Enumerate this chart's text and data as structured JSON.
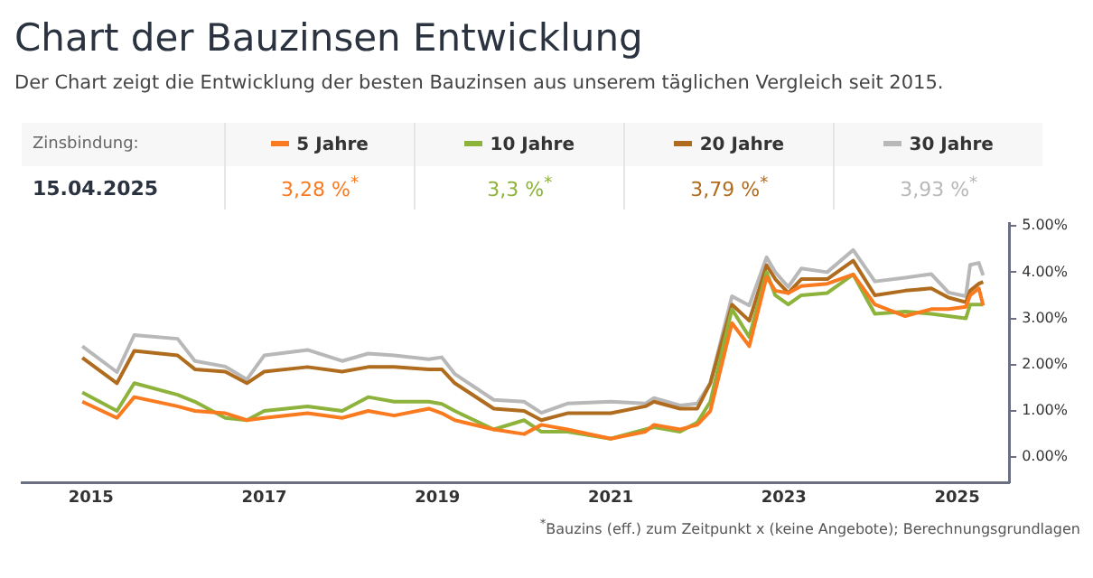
{
  "chart_data": {
    "type": "line",
    "title": "Chart der Bauzinsen Entwicklung",
    "subtitle": "Der Chart zeigt die Entwicklung der besten Bauzinsen aus unserem täglichen Vergleich seit 2015.",
    "legend_title": "Zinsbindung:",
    "legend": "top",
    "grid": false,
    "x": [
      2014.9,
      2015.3,
      2015.5,
      2016.0,
      2016.2,
      2016.55,
      2016.8,
      2017.0,
      2017.5,
      2017.9,
      2018.2,
      2018.5,
      2018.9,
      2019.05,
      2019.2,
      2019.65,
      2020.0,
      2020.2,
      2020.5,
      2021.0,
      2021.4,
      2021.5,
      2021.8,
      2022.0,
      2022.15,
      2022.4,
      2022.6,
      2022.8,
      2022.9,
      2023.05,
      2023.2,
      2023.5,
      2023.8,
      2024.05,
      2024.4,
      2024.7,
      2024.9,
      2025.1,
      2025.15,
      2025.25,
      2025.3
    ],
    "xlim": [
      2014.2,
      2025.6
    ],
    "xticks": [
      2015,
      2017,
      2019,
      2021,
      2023,
      2025
    ],
    "ylim": [
      -0.55,
      5.05
    ],
    "yticks": [
      {
        "value": 0,
        "label": "0.00%"
      },
      {
        "value": 1,
        "label": "1.00%"
      },
      {
        "value": 2,
        "label": "2.00%"
      },
      {
        "value": 3,
        "label": "3.00%"
      },
      {
        "value": 4,
        "label": "4.00%"
      },
      {
        "value": 5,
        "label": "5.00%"
      }
    ],
    "series": [
      {
        "name": "5 Jahre",
        "color": "#f97a1f",
        "values": [
          1.2,
          0.85,
          1.3,
          1.1,
          1.0,
          0.95,
          0.8,
          0.85,
          0.95,
          0.85,
          1.0,
          0.9,
          1.05,
          0.95,
          0.8,
          0.6,
          0.5,
          0.7,
          0.6,
          0.4,
          0.55,
          0.7,
          0.6,
          0.7,
          1.0,
          2.9,
          2.4,
          3.9,
          3.6,
          3.55,
          3.7,
          3.75,
          3.95,
          3.3,
          3.05,
          3.2,
          3.2,
          3.25,
          3.5,
          3.65,
          3.28
        ]
      },
      {
        "name": "10 Jahre",
        "color": "#8db33c",
        "values": [
          1.4,
          1.0,
          1.6,
          1.35,
          1.2,
          0.85,
          0.8,
          1.0,
          1.1,
          1.0,
          1.3,
          1.2,
          1.2,
          1.15,
          1.0,
          0.6,
          0.8,
          0.55,
          0.55,
          0.4,
          0.6,
          0.65,
          0.55,
          0.75,
          1.2,
          3.2,
          2.6,
          4.0,
          3.5,
          3.3,
          3.5,
          3.55,
          3.95,
          3.1,
          3.15,
          3.1,
          3.05,
          3.0,
          3.3,
          3.3,
          3.3
        ]
      },
      {
        "name": "20 Jahre",
        "color": "#b06c1e",
        "values": [
          2.15,
          1.6,
          2.3,
          2.2,
          1.9,
          1.85,
          1.6,
          1.85,
          1.95,
          1.85,
          1.95,
          1.95,
          1.9,
          1.9,
          1.6,
          1.05,
          1.0,
          0.8,
          0.95,
          0.95,
          1.1,
          1.2,
          1.05,
          1.05,
          1.6,
          3.3,
          2.95,
          4.15,
          3.85,
          3.55,
          3.85,
          3.85,
          4.25,
          3.5,
          3.6,
          3.65,
          3.45,
          3.35,
          3.6,
          3.75,
          3.79
        ]
      },
      {
        "name": "30 Jahre",
        "color": "#b8b8b8",
        "values": [
          2.4,
          1.84,
          2.64,
          2.56,
          2.08,
          1.96,
          1.68,
          2.2,
          2.32,
          2.08,
          2.24,
          2.2,
          2.12,
          2.16,
          1.8,
          1.24,
          1.2,
          0.96,
          1.16,
          1.2,
          1.16,
          1.28,
          1.12,
          1.16,
          1.6,
          3.48,
          3.28,
          4.32,
          4.0,
          3.68,
          4.08,
          4.0,
          4.48,
          3.8,
          3.88,
          3.96,
          3.56,
          3.48,
          4.16,
          4.2,
          3.93
        ]
      }
    ],
    "annotations": [
      "15.04.2025",
      "3,28 %$^{*}$",
      "3,3 %$^{*}$",
      "3,79 %$^{*}$",
      "3,93 %$^{*}$",
      "$^{*}$Bauzins (eff.) zum Zeitpunkt x (keine Angebote); Berechnungsgrundlagen"
    ]
  }
}
